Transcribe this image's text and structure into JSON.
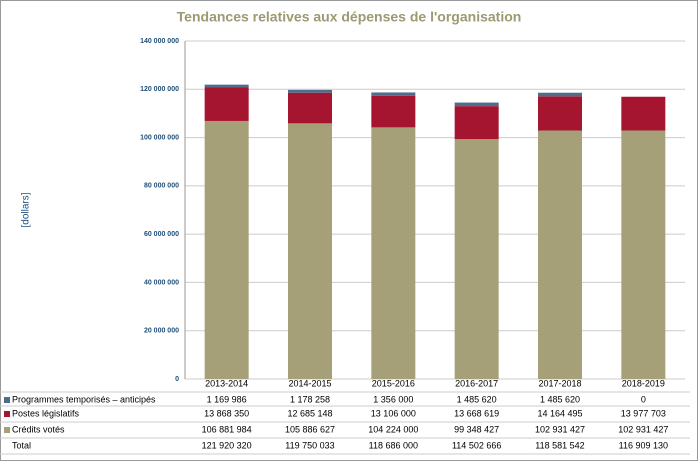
{
  "chart_data": {
    "type": "stacked-bar",
    "title": "Tendances relatives aux dépenses de l'organisation",
    "y_label": "[dollars]",
    "categories": [
      "2013-2014",
      "2014-2015",
      "2015-2016",
      "2016-2017",
      "2017-2018",
      "2018-2019"
    ],
    "series": [
      {
        "name": "Programmes temporisés – anticipés",
        "color": "#4f6d8a",
        "values": [
          1169986,
          1178258,
          1356000,
          1485620,
          1485620,
          0
        ],
        "value_labels": [
          "1 169 986",
          "1 178 258",
          "1 356 000",
          "1 485 620",
          "1 485 620",
          "0"
        ]
      },
      {
        "name": "Postes législatifs",
        "color": "#a51530",
        "values": [
          13868350,
          12685148,
          13106000,
          13668619,
          14164495,
          13977703
        ],
        "value_labels": [
          "13 868 350",
          "12 685 148",
          "13 106 000",
          "13 668 619",
          "14 164 495",
          "13 977 703"
        ]
      },
      {
        "name": "Crédits votés",
        "color": "#a5a077",
        "values": [
          106881984,
          105886627,
          104224000,
          99348427,
          102931427,
          102931427
        ],
        "value_labels": [
          "106 881 984",
          "105 886 627",
          "104 224 000",
          "99 348 427",
          "102 931 427",
          "102 931 427"
        ]
      }
    ],
    "total": {
      "name": "Total",
      "values": [
        121920320,
        119750033,
        118686000,
        114502666,
        118581542,
        116909130
      ],
      "value_labels": [
        "121 920 320",
        "119 750 033",
        "118 686 000",
        "114 502 666",
        "118 581 542",
        "116 909 130"
      ]
    },
    "ylim": [
      0,
      140000000
    ],
    "yticks": [
      {
        "value": 0,
        "label": "0"
      },
      {
        "value": 20000000,
        "label": "20 000 000"
      },
      {
        "value": 40000000,
        "label": "40 000 000"
      },
      {
        "value": 60000000,
        "label": "60 000 000"
      },
      {
        "value": 80000000,
        "label": "80 000 000"
      },
      {
        "value": 100000000,
        "label": "100 000 000"
      },
      {
        "value": 120000000,
        "label": "120 000 000"
      },
      {
        "value": 140000000,
        "label": "140 000 000"
      }
    ],
    "grid": true
  }
}
